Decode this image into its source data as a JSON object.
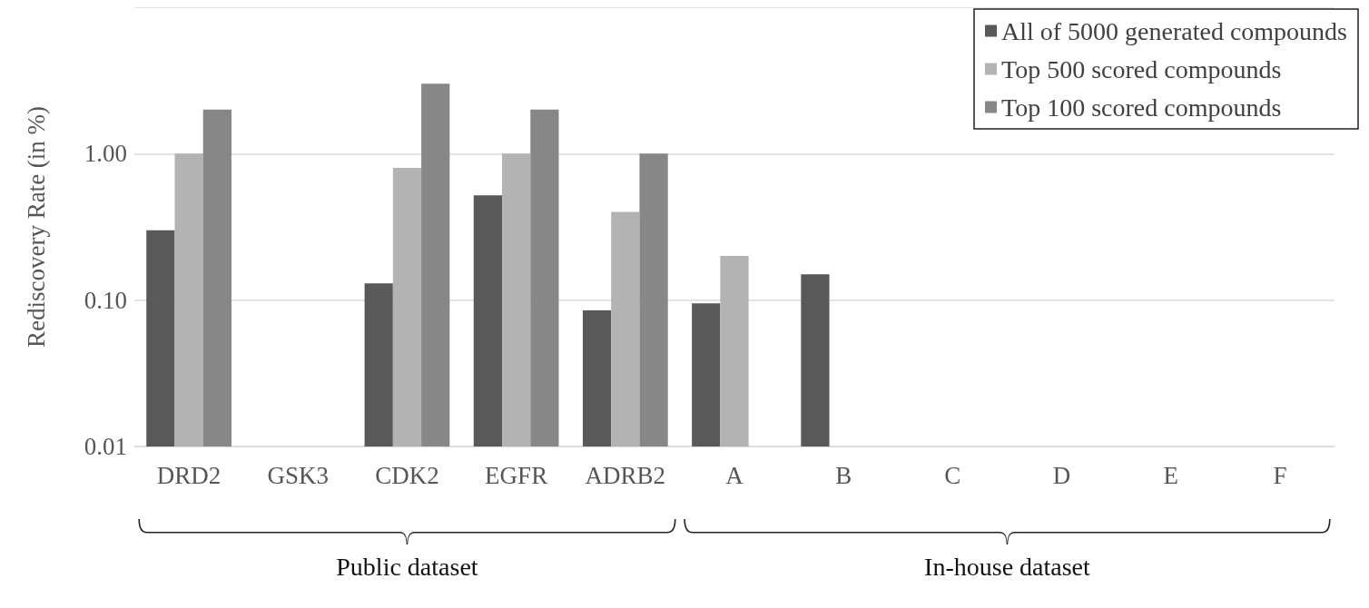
{
  "chart_data": {
    "type": "bar",
    "ylabel": "Rediscovery Rate (in %)",
    "categories": [
      "DRD2",
      "GSK3",
      "CDK2",
      "EGFR",
      "ADRB2",
      "A",
      "B",
      "C",
      "D",
      "E",
      "F"
    ],
    "series": [
      {
        "name": "All of 5000 generated compounds",
        "color": "#595959",
        "values": [
          0.3,
          null,
          0.13,
          0.52,
          0.085,
          0.095,
          0.15,
          null,
          null,
          null,
          null
        ]
      },
      {
        "name": "Top 500 scored compounds",
        "color": "#b3b3b3",
        "values": [
          1.0,
          null,
          0.8,
          1.0,
          0.4,
          0.2,
          null,
          null,
          null,
          null,
          null
        ]
      },
      {
        "name": "Top 100 scored compounds",
        "color": "#878787",
        "values": [
          2.0,
          null,
          3.0,
          2.0,
          1.0,
          null,
          null,
          null,
          null,
          null,
          null
        ]
      }
    ],
    "log": "y",
    "ylim": [
      0.01,
      10
    ],
    "yticks": [
      {
        "value": 0.01,
        "label": "0.01"
      },
      {
        "value": 0.1,
        "label": "0.10"
      },
      {
        "value": 1,
        "label": "1.00"
      },
      {
        "value": 10,
        "label": null
      }
    ],
    "grid": "y",
    "legend": "top right",
    "annotations": [
      "Public dataset",
      "In-house dataset"
    ]
  }
}
